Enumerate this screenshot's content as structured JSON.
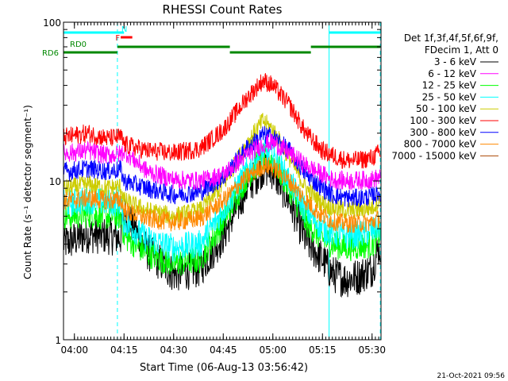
{
  "chart_data": {
    "type": "line",
    "title": "RHESSI Count Rates",
    "xlabel": "Start Time (06-Aug-13 03:56:42)",
    "ylabel": "Count Rate (s⁻¹ detector segment⁻¹)",
    "yscale": "log",
    "ylim": [
      1,
      100
    ],
    "xlim_minutes_after_start": [
      0,
      96
    ],
    "x_ticks": [
      "04:00",
      "04:15",
      "04:30",
      "04:45",
      "05:00",
      "05:15",
      "05:30"
    ],
    "y_ticks": [
      "1",
      "10",
      "100"
    ],
    "footer_date": "21-Oct-2021 09:56",
    "legend_header": [
      "Det 1f,3f,4f,5f,6f,9f,",
      "FDecim 1, Att 0"
    ],
    "series": [
      {
        "name": "3 - 6 keV",
        "color": "#000000",
        "x": [
          "03:58",
          "04:04",
          "04:10",
          "04:14",
          "04:15",
          "04:22",
          "04:30",
          "04:38",
          "04:45",
          "04:52",
          "04:57",
          "05:00",
          "05:05",
          "05:10",
          "05:15",
          "05:18",
          "05:22",
          "05:26",
          "05:30",
          "05:32"
        ],
        "y": [
          4.1,
          4.6,
          4.5,
          4.4,
          6.5,
          3.6,
          2.6,
          2.8,
          4.5,
          9.0,
          12.0,
          11.5,
          7.5,
          4.2,
          3.2,
          2.6,
          2.4,
          2.5,
          2.8,
          3.8
        ]
      },
      {
        "name": "6 - 12 keV",
        "color": "#ff00ff",
        "x": [
          "03:58",
          "04:04",
          "04:10",
          "04:14",
          "04:15",
          "04:22",
          "04:30",
          "04:38",
          "04:45",
          "04:52",
          "04:57",
          "05:00",
          "05:05",
          "05:10",
          "05:15",
          "05:18",
          "05:22",
          "05:26",
          "05:30",
          "05:32"
        ],
        "y": [
          15.0,
          15.5,
          14.5,
          14.8,
          15.5,
          11.5,
          10.2,
          10.0,
          11.0,
          14.5,
          17.0,
          17.5,
          15.0,
          12.5,
          11.0,
          10.2,
          10.0,
          10.1,
          10.2,
          10.5
        ]
      },
      {
        "name": "12 - 25 keV",
        "color": "#00ff00",
        "x": [
          "03:58",
          "04:04",
          "04:10",
          "04:14",
          "04:15",
          "04:22",
          "04:30",
          "04:38",
          "04:45",
          "04:52",
          "04:57",
          "05:00",
          "05:05",
          "05:10",
          "05:15",
          "05:18",
          "05:22",
          "05:26",
          "05:30",
          "05:32"
        ],
        "y": [
          6.0,
          6.2,
          6.0,
          6.0,
          4.5,
          3.5,
          3.0,
          3.2,
          5.5,
          10.5,
          14.0,
          13.5,
          9.0,
          5.5,
          4.3,
          4.0,
          3.8,
          3.9,
          4.0,
          4.5
        ]
      },
      {
        "name": "25 - 50 keV",
        "color": "#00ffff",
        "x": [
          "03:58",
          "04:04",
          "04:10",
          "04:14",
          "04:15",
          "04:22",
          "04:30",
          "04:38",
          "04:45",
          "04:52",
          "04:57",
          "05:00",
          "05:05",
          "05:10",
          "05:15",
          "05:18",
          "05:22",
          "05:26",
          "05:30",
          "05:32"
        ],
        "y": [
          7.2,
          7.6,
          7.3,
          7.3,
          5.5,
          4.3,
          3.8,
          4.0,
          6.5,
          11.5,
          15.0,
          14.5,
          10.0,
          6.5,
          5.0,
          4.7,
          4.5,
          4.6,
          4.8,
          5.2
        ]
      },
      {
        "name": "50 - 100 keV",
        "color": "#cccc00",
        "x": [
          "03:58",
          "04:04",
          "04:10",
          "04:14",
          "04:15",
          "04:22",
          "04:30",
          "04:38",
          "04:45",
          "04:52",
          "04:57",
          "05:00",
          "05:05",
          "05:10",
          "05:15",
          "05:18",
          "05:22",
          "05:26",
          "05:30",
          "05:32"
        ],
        "y": [
          9.0,
          9.5,
          9.0,
          9.2,
          7.5,
          6.5,
          6.0,
          6.5,
          9.5,
          17.0,
          24.0,
          21.0,
          14.0,
          9.0,
          7.2,
          6.8,
          6.5,
          6.6,
          6.8,
          7.5
        ]
      },
      {
        "name": "100 - 300 keV",
        "color": "#ff0000",
        "x": [
          "03:58",
          "04:04",
          "04:10",
          "04:14",
          "04:15",
          "04:22",
          "04:30",
          "04:38",
          "04:45",
          "04:52",
          "04:57",
          "05:00",
          "05:05",
          "05:10",
          "05:15",
          "05:18",
          "05:22",
          "05:26",
          "05:30",
          "05:32"
        ],
        "y": [
          19.0,
          20.0,
          18.5,
          19.0,
          17.0,
          15.5,
          15.0,
          16.0,
          21.0,
          33.0,
          43.0,
          40.0,
          30.0,
          20.0,
          15.5,
          14.5,
          13.5,
          13.5,
          14.0,
          15.0
        ]
      },
      {
        "name": "300 - 800 keV",
        "color": "#0000ff",
        "x": [
          "03:58",
          "04:04",
          "04:10",
          "04:14",
          "04:15",
          "04:22",
          "04:30",
          "04:38",
          "04:45",
          "04:52",
          "04:57",
          "05:00",
          "05:05",
          "05:10",
          "05:15",
          "05:18",
          "05:22",
          "05:26",
          "05:30",
          "05:32"
        ],
        "y": [
          11.5,
          12.0,
          11.5,
          11.8,
          10.0,
          9.0,
          8.2,
          8.5,
          10.5,
          16.0,
          19.5,
          19.0,
          15.5,
          11.0,
          9.0,
          8.2,
          7.8,
          7.8,
          8.0,
          8.5
        ]
      },
      {
        "name": "800 - 7000 keV",
        "color": "#ff8800",
        "x": [
          "03:58",
          "04:04",
          "04:10",
          "04:14",
          "04:15",
          "04:22",
          "04:30",
          "04:38",
          "04:45",
          "04:52",
          "04:57",
          "05:00",
          "05:05",
          "05:10",
          "05:15",
          "05:18",
          "05:22",
          "05:26",
          "05:30",
          "05:32"
        ],
        "y": [
          7.5,
          7.8,
          7.5,
          7.6,
          6.5,
          5.8,
          5.5,
          5.8,
          7.5,
          10.5,
          12.5,
          12.2,
          10.0,
          7.5,
          6.0,
          5.6,
          5.4,
          5.4,
          5.5,
          5.8
        ]
      },
      {
        "name": "7000 - 15000 keV",
        "color": "#aa4400",
        "x": [],
        "y": []
      }
    ],
    "attenuator_segments": [
      {
        "label": "RD0",
        "color": "#008800",
        "x": [
          "03:56:42",
          "04:13:00"
        ]
      },
      {
        "label": "RD6",
        "color": "#008800",
        "x": [
          "04:13:00",
          "04:47:00"
        ]
      },
      {
        "label": "",
        "color": "#008800",
        "x": [
          "04:47:00",
          "05:11:30"
        ]
      },
      {
        "label": "",
        "color": "#008800",
        "x": [
          "05:11:30",
          "05:32:30"
        ]
      },
      {
        "label": "",
        "color": "#00ffff",
        "x": [
          "03:56:42",
          "04:13:00"
        ]
      },
      {
        "label": "",
        "color": "#00ffff",
        "x": [
          "05:17:00",
          "05:32:30"
        ]
      },
      {
        "label": "F",
        "color": "#ff0000",
        "x": [
          "04:14:00",
          "04:17:30"
        ]
      },
      {
        "label": "N",
        "color": "#00ffff",
        "x": [
          "04:13:00",
          "04:15:00"
        ]
      }
    ],
    "vertical_markers": [
      "03:56:42",
      "04:13:00",
      "05:17:00",
      "05:32:30"
    ],
    "legend_placement": "right",
    "grid": false
  }
}
